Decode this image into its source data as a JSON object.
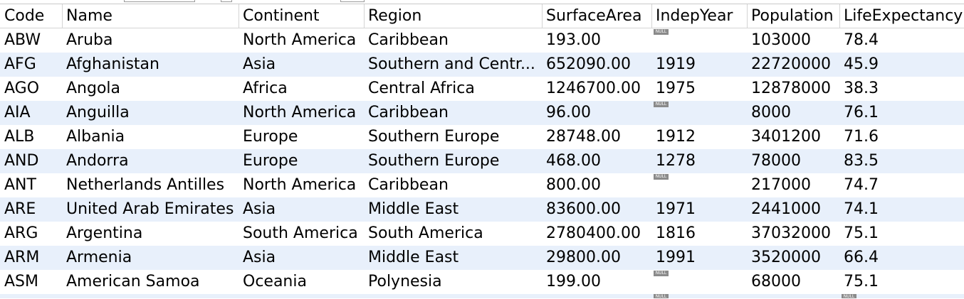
{
  "columns": [
    "Code",
    "Name",
    "Continent",
    "Region",
    "SurfaceArea",
    "IndepYear",
    "Population",
    "LifeExpectancy"
  ],
  "null_label": "NULL",
  "rows": [
    {
      "code": "ABW",
      "name": "Aruba",
      "continent": "North America",
      "region": "Caribbean",
      "surface": "193.00",
      "indep": null,
      "population": "103000",
      "life": "78.4"
    },
    {
      "code": "AFG",
      "name": "Afghanistan",
      "continent": "Asia",
      "region": "Southern and Centr...",
      "surface": "652090.00",
      "indep": "1919",
      "population": "22720000",
      "life": "45.9"
    },
    {
      "code": "AGO",
      "name": "Angola",
      "continent": "Africa",
      "region": "Central Africa",
      "surface": "1246700.00",
      "indep": "1975",
      "population": "12878000",
      "life": "38.3"
    },
    {
      "code": "AIA",
      "name": "Anguilla",
      "continent": "North America",
      "region": "Caribbean",
      "surface": "96.00",
      "indep": null,
      "population": "8000",
      "life": "76.1"
    },
    {
      "code": "ALB",
      "name": "Albania",
      "continent": "Europe",
      "region": "Southern Europe",
      "surface": "28748.00",
      "indep": "1912",
      "population": "3401200",
      "life": "71.6"
    },
    {
      "code": "AND",
      "name": "Andorra",
      "continent": "Europe",
      "region": "Southern Europe",
      "surface": "468.00",
      "indep": "1278",
      "population": "78000",
      "life": "83.5"
    },
    {
      "code": "ANT",
      "name": "Netherlands Antilles",
      "continent": "North America",
      "region": "Caribbean",
      "surface": "800.00",
      "indep": null,
      "population": "217000",
      "life": "74.7"
    },
    {
      "code": "ARE",
      "name": "United Arab Emirates",
      "continent": "Asia",
      "region": "Middle East",
      "surface": "83600.00",
      "indep": "1971",
      "population": "2441000",
      "life": "74.1"
    },
    {
      "code": "ARG",
      "name": "Argentina",
      "continent": "South America",
      "region": "South America",
      "surface": "2780400.00",
      "indep": "1816",
      "population": "37032000",
      "life": "75.1"
    },
    {
      "code": "ARM",
      "name": "Armenia",
      "continent": "Asia",
      "region": "Middle East",
      "surface": "29800.00",
      "indep": "1991",
      "population": "3520000",
      "life": "66.4"
    },
    {
      "code": "ASM",
      "name": "American Samoa",
      "continent": "Oceania",
      "region": "Polynesia",
      "surface": "199.00",
      "indep": null,
      "population": "68000",
      "life": "75.1"
    }
  ],
  "partial_row": {
    "indep": null,
    "life": null
  },
  "colors": {
    "row_alt": "#e8f0fb",
    "null_badge": "#8a8a8a",
    "grid_line": "#d4d4d4"
  }
}
